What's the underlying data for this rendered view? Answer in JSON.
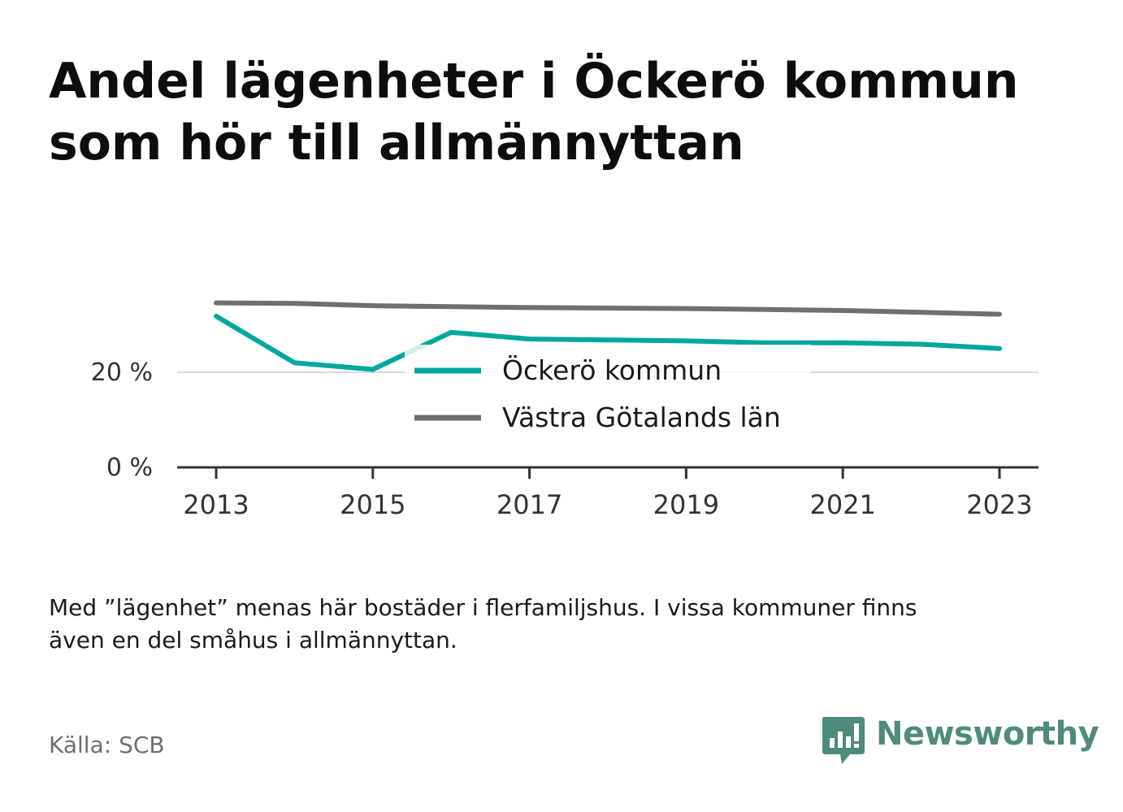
{
  "title": {
    "line1": "Andel lägenheter i Öckerö kommun",
    "line2": "som hör till allmännyttan"
  },
  "chart_data": {
    "type": "line",
    "x": [
      2013,
      2014,
      2015,
      2016,
      2017,
      2018,
      2019,
      2020,
      2021,
      2022,
      2023
    ],
    "x_ticks": [
      2013,
      2015,
      2017,
      2019,
      2021,
      2023
    ],
    "x_tick_labels": [
      "2013",
      "2015",
      "2017",
      "2019",
      "2021",
      "2023"
    ],
    "y_ticks": [
      0,
      20
    ],
    "y_tick_labels": [
      "0 %",
      "20 %"
    ],
    "ylim": [
      0,
      40
    ],
    "grid": true,
    "legend_position": "center",
    "series": [
      {
        "name": "Öckerö kommun",
        "color": "#00a79d",
        "values": [
          31.8,
          22.0,
          20.6,
          28.4,
          27.0,
          26.8,
          26.6,
          26.2,
          26.2,
          25.9,
          25.0
        ]
      },
      {
        "name": "Västra Götalands län",
        "color": "#6e6e73",
        "values": [
          34.6,
          34.5,
          34.0,
          33.8,
          33.6,
          33.5,
          33.4,
          33.2,
          33.0,
          32.6,
          32.2
        ]
      }
    ]
  },
  "footnote": {
    "line1": "Med ”lägenhet” menas här bostäder i flerfamiljshus. I vissa kommuner finns",
    "line2": "även en del småhus i allmännyttan."
  },
  "source": "Källa: SCB",
  "brand": {
    "name": "Newsworthy",
    "logo_icon": "bar-chart-bubble-icon",
    "color": "#4e8b7e"
  }
}
